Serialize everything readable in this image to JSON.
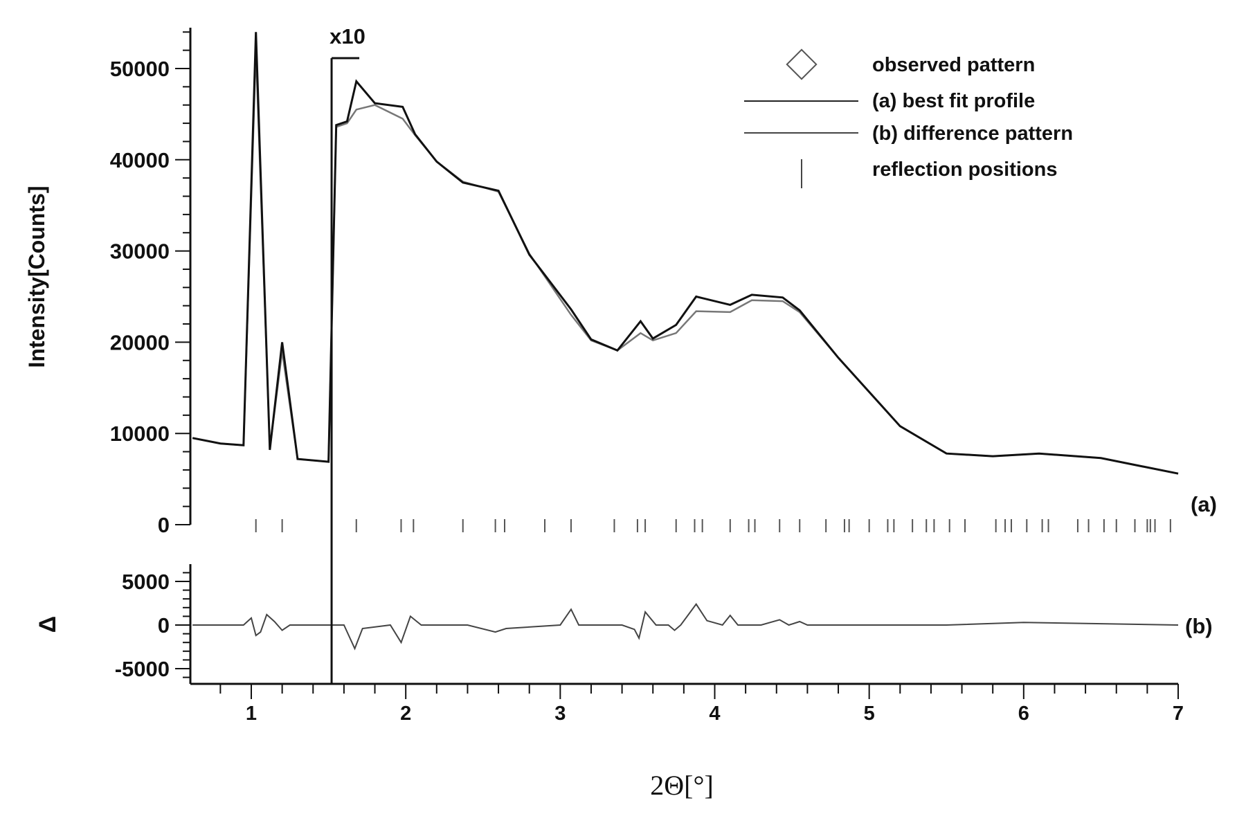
{
  "chart_data": {
    "type": "line",
    "xlabel": "2Θ[°]",
    "ylabel": "Intensity[Counts]",
    "diff_ylabel": "Δ",
    "xlim": [
      0.62,
      7.0
    ],
    "ylim": [
      0,
      54000
    ],
    "diff_ylim": [
      -6500,
      6500
    ],
    "x_ticks": [
      "1",
      "2",
      "3",
      "4",
      "5",
      "6",
      "7"
    ],
    "y_ticks": [
      "0",
      "10000",
      "20000",
      "30000",
      "40000",
      "50000"
    ],
    "diff_y_ticks": [
      "-5000",
      "0",
      "5000"
    ],
    "scale_marker": {
      "label": "x10",
      "x": 1.52
    },
    "panel_labels": {
      "main": "(a)",
      "diff": "(b)"
    },
    "legend": {
      "observed": "observed pattern",
      "fit": "(a) best fit profile",
      "difference": "(b) difference pattern",
      "reflections": "reflection positions"
    },
    "series": [
      {
        "name": "observed pattern",
        "x": [
          0.62,
          0.8,
          0.95,
          1.03,
          1.12,
          1.2,
          1.3,
          1.5,
          1.55,
          1.62,
          1.68,
          1.8,
          1.98,
          2.06,
          2.2,
          2.37,
          2.6,
          2.8,
          3.07,
          3.2,
          3.37,
          3.52,
          3.6,
          3.75,
          3.88,
          4.1,
          4.24,
          4.44,
          4.55,
          4.8,
          5.2,
          5.5,
          5.8,
          6.1,
          6.5,
          7.0
        ],
        "y": [
          9500,
          8900,
          8700,
          54000,
          8200,
          20000,
          7200,
          6900,
          43800,
          44200,
          48600,
          46200,
          45800,
          42800,
          39800,
          37500,
          36600,
          29600,
          23600,
          20300,
          19100,
          22300,
          20400,
          21900,
          25000,
          24100,
          25200,
          24900,
          23500,
          18300,
          10800,
          7800,
          7500,
          7800,
          7300,
          5600
        ]
      },
      {
        "name": "(a) best fit profile",
        "x": [
          0.62,
          0.8,
          0.95,
          1.03,
          1.12,
          1.2,
          1.3,
          1.5,
          1.55,
          1.62,
          1.68,
          1.8,
          1.98,
          2.06,
          2.2,
          2.37,
          2.6,
          2.8,
          3.07,
          3.2,
          3.37,
          3.52,
          3.6,
          3.75,
          3.88,
          4.1,
          4.24,
          4.44,
          4.55,
          4.8,
          5.2,
          5.5,
          5.8,
          6.1,
          6.5,
          7.0
        ],
        "y": [
          9500,
          8900,
          8700,
          52000,
          8300,
          19000,
          7200,
          6900,
          43600,
          44000,
          45500,
          46000,
          44500,
          42700,
          39800,
          37600,
          36500,
          29700,
          23000,
          20200,
          19100,
          21000,
          20200,
          21000,
          23400,
          23300,
          24600,
          24500,
          23300,
          18300,
          10800,
          7800,
          7500,
          7800,
          7300,
          5600
        ]
      },
      {
        "name": "(b) difference pattern",
        "x": [
          0.62,
          0.95,
          1.0,
          1.03,
          1.06,
          1.1,
          1.15,
          1.2,
          1.25,
          1.5,
          1.6,
          1.67,
          1.72,
          1.9,
          1.97,
          2.03,
          2.1,
          2.4,
          2.58,
          2.65,
          3.0,
          3.07,
          3.12,
          3.4,
          3.48,
          3.51,
          3.55,
          3.62,
          3.7,
          3.74,
          3.78,
          3.88,
          3.95,
          4.05,
          4.1,
          4.15,
          4.3,
          4.42,
          4.48,
          4.55,
          4.6,
          5.0,
          5.5,
          6.0,
          7.0
        ],
        "y": [
          0,
          0,
          800,
          -1200,
          -800,
          1200,
          400,
          -600,
          0,
          0,
          0,
          -2700,
          -400,
          0,
          -2000,
          1000,
          0,
          0,
          -800,
          -400,
          0,
          1800,
          0,
          0,
          -500,
          -1500,
          1500,
          0,
          0,
          -600,
          0,
          2400,
          500,
          0,
          1100,
          0,
          0,
          600,
          0,
          400,
          0,
          0,
          0,
          300,
          0
        ]
      }
    ],
    "reflection_positions": [
      1.03,
      1.2,
      1.68,
      1.97,
      2.05,
      2.37,
      2.58,
      2.64,
      2.9,
      3.07,
      3.35,
      3.5,
      3.55,
      3.75,
      3.87,
      3.92,
      4.1,
      4.22,
      4.26,
      4.42,
      4.55,
      4.72,
      4.84,
      4.87,
      5.0,
      5.12,
      5.16,
      5.28,
      5.37,
      5.42,
      5.52,
      5.62,
      5.82,
      5.88,
      5.92,
      6.02,
      6.12,
      6.16,
      6.35,
      6.42,
      6.52,
      6.6,
      6.72,
      6.8,
      6.82,
      6.85,
      6.95
    ]
  }
}
